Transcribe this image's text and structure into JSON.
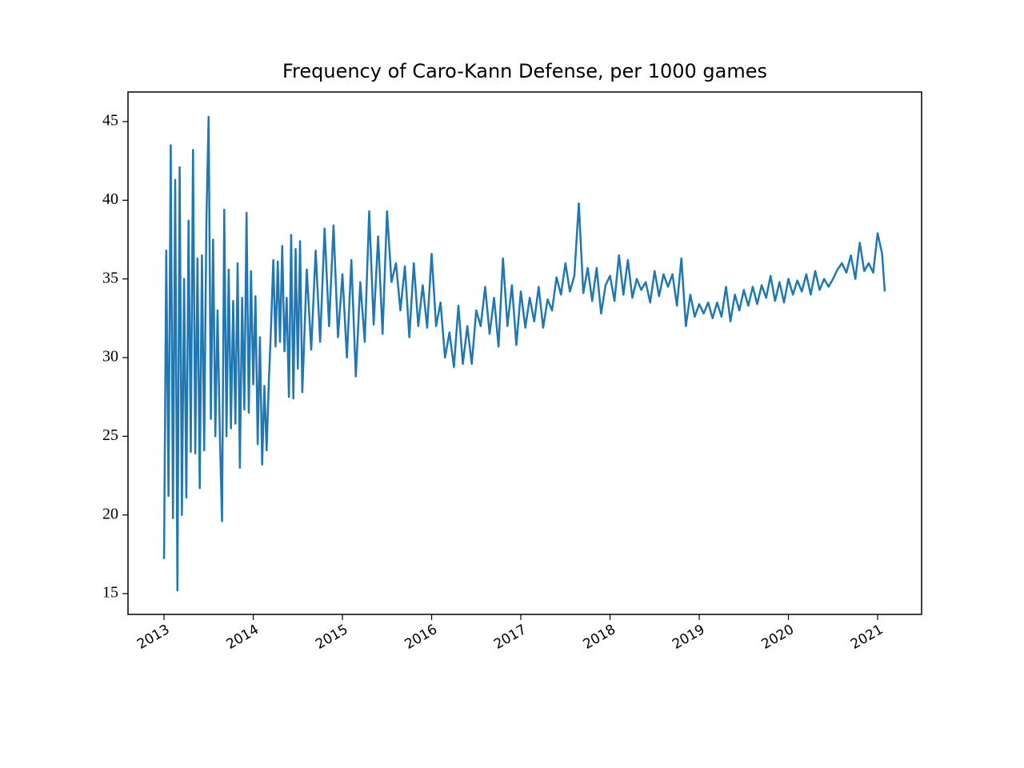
{
  "chart_data": {
    "type": "line",
    "title": "Frequency of Caro-Kann Defense, per 1000 games",
    "color": "#1f77b4",
    "x": [
      2013.0,
      2013.025,
      2013.05,
      2013.075,
      2013.1,
      2013.125,
      2013.15,
      2013.175,
      2013.2,
      2013.225,
      2013.25,
      2013.275,
      2013.3,
      2013.325,
      2013.35,
      2013.375,
      2013.4,
      2013.425,
      2013.45,
      2013.475,
      2013.5,
      2013.525,
      2013.55,
      2013.575,
      2013.6,
      2013.625,
      2013.65,
      2013.675,
      2013.7,
      2013.725,
      2013.75,
      2013.775,
      2013.8,
      2013.825,
      2013.85,
      2013.875,
      2013.9,
      2013.925,
      2013.95,
      2013.975,
      2014.0,
      2014.025,
      2014.05,
      2014.075,
      2014.1,
      2014.125,
      2014.15,
      2014.175,
      2014.2,
      2014.225,
      2014.25,
      2014.275,
      2014.3,
      2014.325,
      2014.35,
      2014.375,
      2014.4,
      2014.425,
      2014.45,
      2014.475,
      2014.5,
      2014.525,
      2014.55,
      2014.6,
      2014.65,
      2014.7,
      2014.75,
      2014.8,
      2014.85,
      2014.9,
      2014.95,
      2015.0,
      2015.05,
      2015.1,
      2015.15,
      2015.2,
      2015.25,
      2015.3,
      2015.35,
      2015.4,
      2015.45,
      2015.5,
      2015.55,
      2015.6,
      2015.65,
      2015.7,
      2015.75,
      2015.8,
      2015.85,
      2015.9,
      2015.95,
      2016.0,
      2016.05,
      2016.1,
      2016.15,
      2016.2,
      2016.25,
      2016.3,
      2016.35,
      2016.4,
      2016.45,
      2016.5,
      2016.55,
      2016.6,
      2016.65,
      2016.7,
      2016.75,
      2016.8,
      2016.85,
      2016.9,
      2016.95,
      2017.0,
      2017.05,
      2017.1,
      2017.15,
      2017.2,
      2017.25,
      2017.3,
      2017.35,
      2017.4,
      2017.45,
      2017.5,
      2017.55,
      2017.6,
      2017.65,
      2017.7,
      2017.75,
      2017.8,
      2017.85,
      2017.9,
      2017.95,
      2018.0,
      2018.05,
      2018.1,
      2018.15,
      2018.2,
      2018.25,
      2018.3,
      2018.35,
      2018.4,
      2018.45,
      2018.5,
      2018.55,
      2018.6,
      2018.65,
      2018.7,
      2018.75,
      2018.8,
      2018.85,
      2018.9,
      2018.95,
      2019.0,
      2019.05,
      2019.1,
      2019.15,
      2019.2,
      2019.25,
      2019.3,
      2019.35,
      2019.4,
      2019.45,
      2019.5,
      2019.55,
      2019.6,
      2019.65,
      2019.7,
      2019.75,
      2019.8,
      2019.85,
      2019.9,
      2019.95,
      2020.0,
      2020.05,
      2020.1,
      2020.15,
      2020.2,
      2020.25,
      2020.3,
      2020.35,
      2020.4,
      2020.45,
      2020.5,
      2020.55,
      2020.6,
      2020.65,
      2020.7,
      2020.75,
      2020.8,
      2020.85,
      2020.9,
      2020.95,
      2021.0,
      2021.05,
      2021.08
    ],
    "values": [
      17.2,
      36.8,
      21.2,
      43.5,
      19.8,
      41.3,
      15.2,
      42.1,
      20.0,
      35.0,
      21.1,
      38.7,
      24.0,
      43.2,
      23.9,
      36.3,
      21.7,
      36.5,
      24.1,
      38.8,
      45.3,
      26.1,
      37.5,
      25.0,
      33.0,
      25.3,
      19.6,
      39.4,
      25.0,
      35.6,
      25.5,
      33.6,
      25.8,
      36.0,
      23.0,
      33.8,
      26.7,
      39.2,
      26.5,
      35.5,
      28.3,
      33.9,
      24.5,
      31.3,
      23.2,
      28.2,
      24.1,
      28.5,
      32.0,
      36.2,
      30.7,
      36.1,
      31.0,
      37.1,
      30.4,
      33.8,
      27.5,
      37.8,
      27.4,
      36.9,
      29.3,
      37.4,
      27.8,
      35.6,
      30.5,
      36.8,
      31.0,
      38.2,
      32.0,
      38.4,
      31.3,
      35.3,
      30.0,
      36.2,
      28.8,
      34.8,
      31.0,
      39.3,
      32.1,
      37.7,
      31.5,
      39.3,
      34.8,
      36.0,
      33.0,
      35.8,
      31.3,
      36.0,
      32.0,
      34.6,
      31.9,
      36.6,
      32.0,
      33.5,
      30.0,
      31.6,
      29.4,
      33.3,
      29.6,
      32.0,
      29.6,
      33.0,
      32.0,
      34.5,
      31.5,
      33.8,
      30.7,
      36.3,
      32.0,
      34.6,
      30.8,
      34.2,
      31.9,
      33.8,
      32.3,
      34.5,
      31.9,
      33.7,
      33.0,
      35.1,
      34.0,
      36.0,
      34.2,
      35.2,
      39.8,
      34.1,
      35.7,
      33.6,
      35.7,
      32.8,
      34.6,
      35.2,
      33.6,
      36.5,
      34.0,
      36.2,
      33.8,
      35.0,
      34.3,
      34.8,
      33.5,
      35.5,
      33.9,
      35.3,
      34.5,
      35.3,
      33.3,
      36.3,
      32.0,
      34.0,
      32.6,
      33.4,
      32.8,
      33.5,
      32.5,
      33.5,
      32.6,
      34.5,
      32.3,
      34.0,
      33.0,
      34.3,
      33.3,
      34.5,
      33.4,
      34.6,
      33.8,
      35.2,
      33.6,
      34.8,
      33.5,
      35.0,
      34.0,
      34.9,
      34.2,
      35.3,
      34.0,
      35.5,
      34.3,
      35.0,
      34.5,
      35.0,
      35.6,
      36.0,
      35.4,
      36.5,
      35.0,
      37.3,
      35.5,
      36.0,
      35.4,
      37.9,
      36.6,
      34.2
    ],
    "xlim": [
      2012.596,
      2021.493
    ],
    "xticks": [
      2013,
      2014,
      2015,
      2016,
      2017,
      2018,
      2019,
      2020,
      2021
    ],
    "ylim": [
      13.68,
      46.88
    ],
    "yticks": [
      15,
      20,
      25,
      30,
      35,
      40,
      45
    ]
  }
}
